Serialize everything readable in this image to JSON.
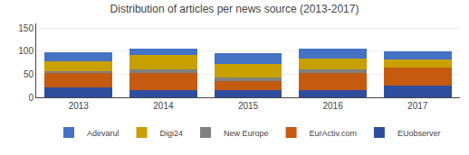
{
  "chart_data": {
    "type": "bar",
    "title": "Distribution of articles per news source (2013-2017)",
    "categories": [
      "2013",
      "2014",
      "2015",
      "2016",
      "2017"
    ],
    "series": [
      {
        "name": "EUobserver",
        "color": "#2E4D9E",
        "values": [
          22,
          15,
          15,
          15,
          25
        ]
      },
      {
        "name": "EurActiv.com",
        "color": "#C55A11",
        "values": [
          30,
          38,
          20,
          38,
          40
        ]
      },
      {
        "name": "New Europe",
        "color": "#808080",
        "values": [
          5,
          8,
          8,
          8,
          0
        ]
      },
      {
        "name": "Digi24",
        "color": "#C8A000",
        "values": [
          22,
          30,
          30,
          22,
          17
        ]
      },
      {
        "name": "Adevarul",
        "color": "#4472C4",
        "values": [
          18,
          15,
          22,
          22,
          18
        ]
      }
    ],
    "stacked": true,
    "ylim": [
      0,
      160
    ],
    "yticks": [
      0,
      50,
      100,
      150
    ],
    "grid": true,
    "legend": "bottom"
  }
}
